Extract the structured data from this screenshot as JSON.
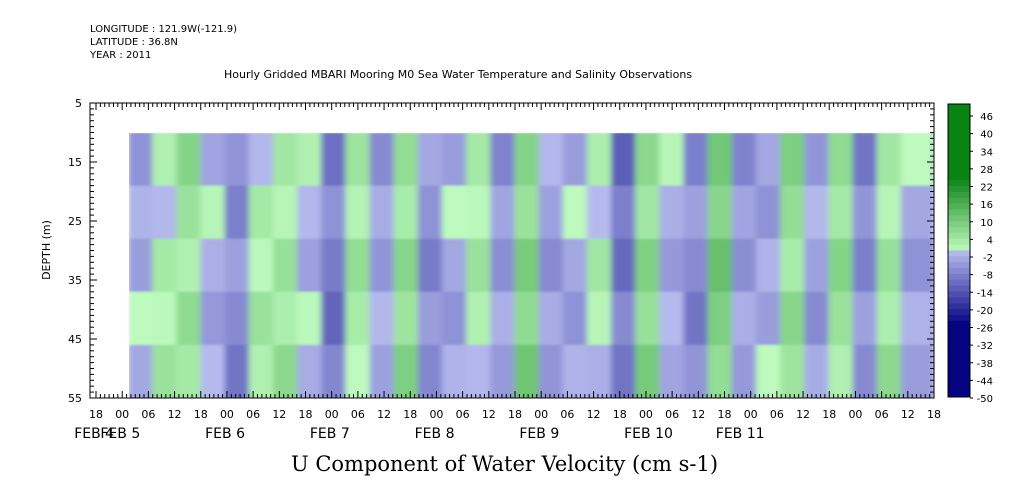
{
  "header": {
    "longitude": "LONGITUDE : 121.9W(-121.9)",
    "latitude": "LATITUDE : 36.8N",
    "year": "YEAR : 2011"
  },
  "chart_data": {
    "type": "heatmap",
    "title": "Hourly Gridded MBARI Mooring M0 Sea Water Temperature and Salinity Observations",
    "bottom_title": "U Component of Water Velocity (cm s-1)",
    "ylabel": "DEPTH (m)",
    "ylim": [
      55,
      5
    ],
    "y_ticks": [
      5,
      15,
      25,
      35,
      45,
      55
    ],
    "data_depth_range": [
      10,
      55
    ],
    "x_hour_labels": [
      "18",
      "00",
      "06",
      "12",
      "18",
      "00",
      "06",
      "12",
      "18",
      "00",
      "06",
      "12",
      "18",
      "00",
      "06",
      "12",
      "18",
      "00",
      "06",
      "12",
      "18",
      "00",
      "06",
      "12",
      "18",
      "00",
      "06",
      "12",
      "18",
      "00",
      "06",
      "12",
      "18"
    ],
    "x_day_labels": [
      {
        "label": "FEB  4",
        "hour_index": 1
      },
      {
        "label": "FEB  5",
        "hour_index": 2
      },
      {
        "label": "FEB  6",
        "hour_index": 6
      },
      {
        "label": "FEB  7",
        "hour_index": 10
      },
      {
        "label": "FEB  8",
        "hour_index": 14
      },
      {
        "label": "FEB  9",
        "hour_index": 18
      },
      {
        "label": "FEB 10",
        "hour_index": 22
      },
      {
        "label": "FEB 11",
        "hour_index": 25.5
      }
    ],
    "colorbar": {
      "labels": [
        "46",
        "40",
        "34",
        "28",
        "22",
        "16",
        "10",
        "4",
        "-2",
        "-8",
        "-14",
        "-20",
        "-26",
        "-32",
        "-38",
        "-44",
        "-50"
      ],
      "min": -50,
      "max": 50
    },
    "velocity_profile_columns": [
      {
        "x_frac": 0.0,
        "u": -6
      },
      {
        "x_frac": 0.03,
        "u": 4
      },
      {
        "x_frac": 0.06,
        "u": 10
      },
      {
        "x_frac": 0.09,
        "u": -4
      },
      {
        "x_frac": 0.12,
        "u": -14
      },
      {
        "x_frac": 0.15,
        "u": 4
      },
      {
        "x_frac": 0.18,
        "u": 8
      },
      {
        "x_frac": 0.21,
        "u": -2
      },
      {
        "x_frac": 0.24,
        "u": -18
      },
      {
        "x_frac": 0.27,
        "u": 6
      },
      {
        "x_frac": 0.3,
        "u": -8
      },
      {
        "x_frac": 0.33,
        "u": 12
      },
      {
        "x_frac": 0.36,
        "u": -12
      },
      {
        "x_frac": 0.39,
        "u": -6
      },
      {
        "x_frac": 0.42,
        "u": 4
      },
      {
        "x_frac": 0.45,
        "u": -10
      },
      {
        "x_frac": 0.48,
        "u": 16
      },
      {
        "x_frac": 0.51,
        "u": -8
      },
      {
        "x_frac": 0.54,
        "u": -6
      },
      {
        "x_frac": 0.57,
        "u": 2
      },
      {
        "x_frac": 0.6,
        "u": -20
      },
      {
        "x_frac": 0.63,
        "u": 14
      },
      {
        "x_frac": 0.66,
        "u": -4
      },
      {
        "x_frac": 0.69,
        "u": -14
      },
      {
        "x_frac": 0.72,
        "u": 18
      },
      {
        "x_frac": 0.75,
        "u": -10
      },
      {
        "x_frac": 0.78,
        "u": -6
      },
      {
        "x_frac": 0.81,
        "u": 12
      },
      {
        "x_frac": 0.84,
        "u": -8
      },
      {
        "x_frac": 0.87,
        "u": 10
      },
      {
        "x_frac": 0.9,
        "u": -14
      },
      {
        "x_frac": 0.93,
        "u": 8
      },
      {
        "x_frac": 0.96,
        "u": -6
      },
      {
        "x_frac": 1.0,
        "u": -10
      }
    ]
  }
}
